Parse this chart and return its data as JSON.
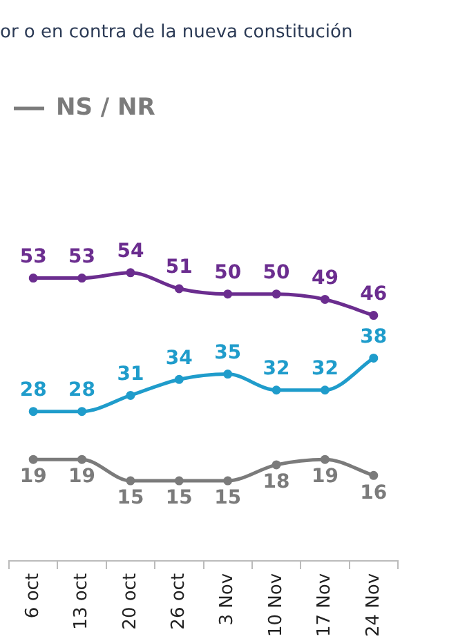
{
  "chart_data": {
    "type": "line",
    "title": "or o en contra de la nueva constitución",
    "categories": [
      "6 oct",
      "13 oct",
      "20 oct",
      "26 oct",
      "3 Nov",
      "10 Nov",
      "17 Nov",
      "24 Nov"
    ],
    "series": [
      {
        "color": "#6b2d8f",
        "values": [
          53,
          53,
          54,
          51,
          50,
          50,
          49,
          46
        ]
      },
      {
        "color": "#1f9ccb",
        "values": [
          28,
          28,
          31,
          34,
          35,
          32,
          32,
          38
        ]
      },
      {
        "name": "NS / NR",
        "color": "#7b7b7b",
        "values": [
          19,
          19,
          15,
          15,
          15,
          18,
          19,
          16
        ]
      }
    ],
    "data_labels": true,
    "legend": "top left",
    "marker": "circle",
    "line_style": "solid",
    "grid": false,
    "tick_labels": "x"
  }
}
